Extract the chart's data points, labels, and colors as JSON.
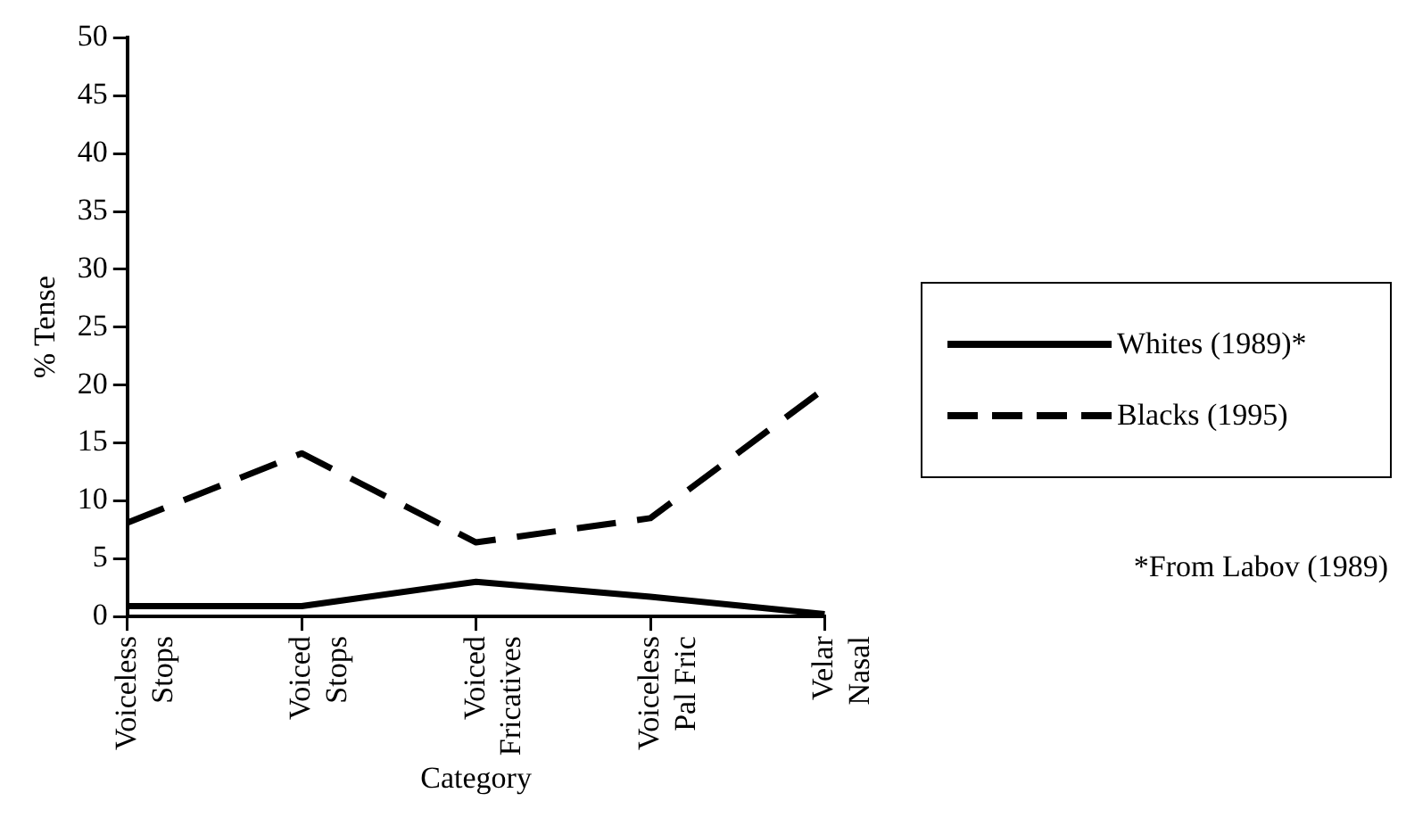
{
  "chart_data": {
    "type": "line",
    "xlabel": "Category",
    "ylabel": "% Tense",
    "categories": [
      "Voiceless\nStops",
      "Voiced\nStops",
      "Voiced\nFricatives",
      "Voiceless\nPal Fric",
      "Velar\nNasal"
    ],
    "series": [
      {
        "name": "Whites (1989)*",
        "color": "#000000",
        "line_style": "solid",
        "values": [
          0.9,
          0.9,
          3.0,
          1.7,
          0.2
        ]
      },
      {
        "name": "Blacks (1995)",
        "color": "#000000",
        "line_style": "dashed",
        "values": [
          8.1,
          14.1,
          6.4,
          8.5,
          19.7
        ]
      }
    ],
    "ylim": [
      0,
      50
    ],
    "yticks": [
      0,
      5,
      10,
      15,
      20,
      25,
      30,
      35,
      40,
      45,
      50
    ],
    "grid": false,
    "legend": "right",
    "marker": "none",
    "annotations": [
      "*From Labov (1989)"
    ]
  }
}
